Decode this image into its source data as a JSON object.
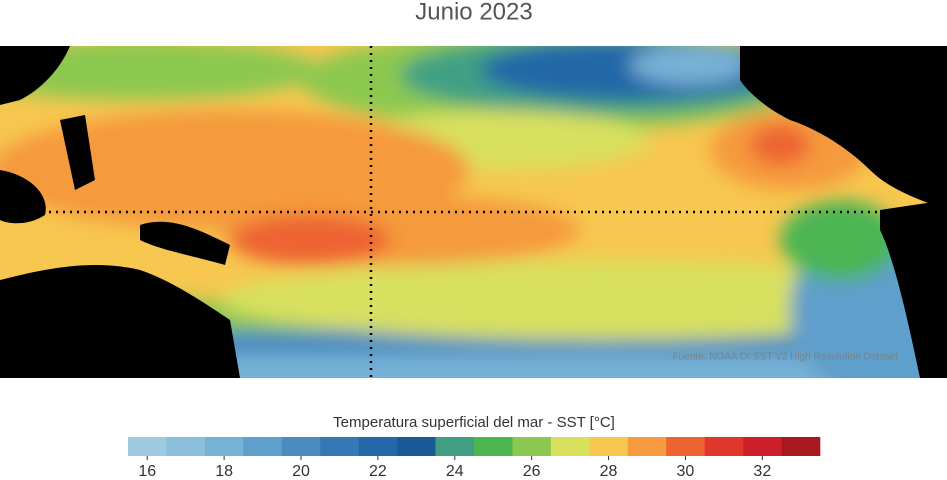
{
  "title": "Junio 2023",
  "source": "Fuente: NOAA OI SST V2 High Resolution Dataset",
  "colorbar": {
    "label": "Temperatura superficial del mar - SST  [°C]",
    "lim": [
      15.5,
      33.5
    ],
    "levels": [
      15.5,
      16.5,
      17.5,
      18.5,
      19.5,
      20.5,
      21.5,
      22.5,
      23.5,
      24.5,
      25.5,
      26.5,
      27.5,
      28.5,
      29.5,
      30.5,
      31.5,
      32.5,
      33.5
    ],
    "colors": [
      "#9ecae1",
      "#8bbfdc",
      "#77b1d6",
      "#5f9fcb",
      "#4a8cc0",
      "#3479b5",
      "#2368a8",
      "#1a5a96",
      "#41a084",
      "#4bb552",
      "#8cc84f",
      "#d8e05e",
      "#f7c74f",
      "#f59a3e",
      "#ee6430",
      "#e0372c",
      "#cc1f2a",
      "#a8181e"
    ],
    "ticks": [
      16,
      18,
      20,
      22,
      24,
      26,
      28,
      30,
      32
    ]
  }
}
